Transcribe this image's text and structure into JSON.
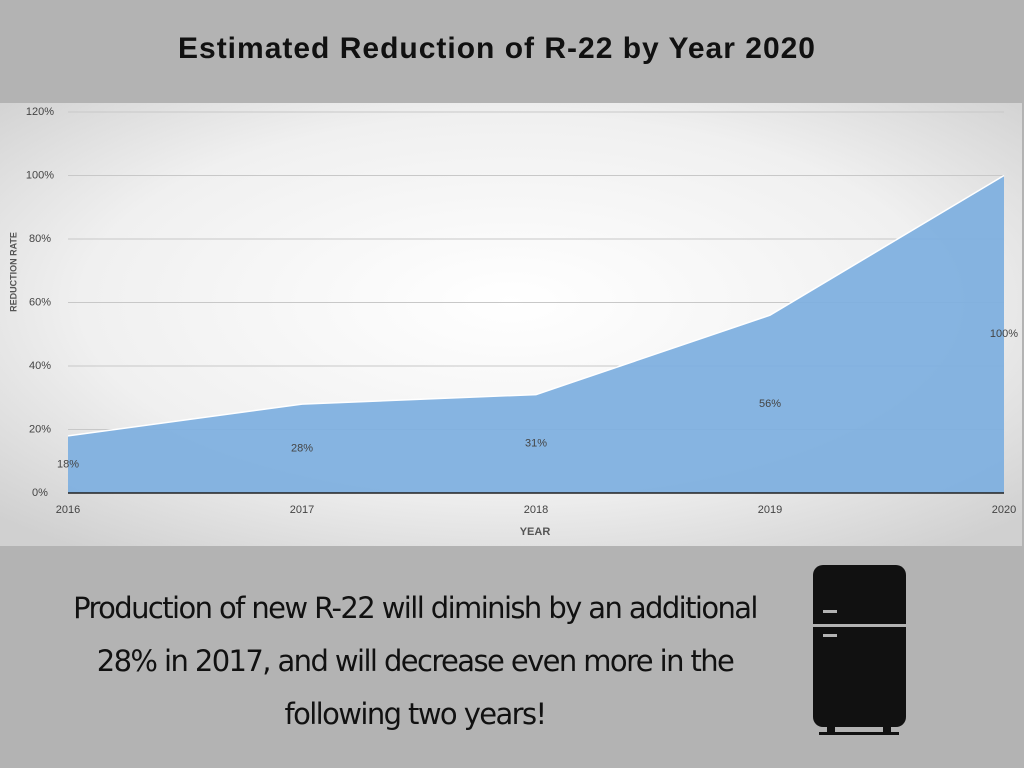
{
  "chart_data": {
    "type": "area",
    "title": "Estimated Reduction of R-22 by Year 2020",
    "x": [
      2016,
      2017,
      2018,
      2019,
      2020
    ],
    "values": [
      18,
      28,
      31,
      56,
      100
    ],
    "value_labels": [
      "18%",
      "28%",
      "31%",
      "56%",
      "100%"
    ],
    "color": "#7fb0df",
    "xlabel": "YEAR",
    "ylabel": "REDUCTION RATE",
    "xlim": [
      2016,
      2020
    ],
    "xticks": [
      2016,
      2017,
      2018,
      2019,
      2020
    ],
    "ylim": [
      0,
      120
    ],
    "yticks": [
      {
        "value": 0,
        "label": "0%"
      },
      {
        "value": 20,
        "label": "20%"
      },
      {
        "value": 40,
        "label": "40%"
      },
      {
        "value": 60,
        "label": "60%"
      },
      {
        "value": 80,
        "label": "80%"
      },
      {
        "value": 100,
        "label": "100%"
      },
      {
        "value": 120,
        "label": "120%"
      }
    ],
    "grid": true
  },
  "caption": "Production of new R-22 will diminish by an additional 28% in 2017, and will decrease even more in the following two years!"
}
